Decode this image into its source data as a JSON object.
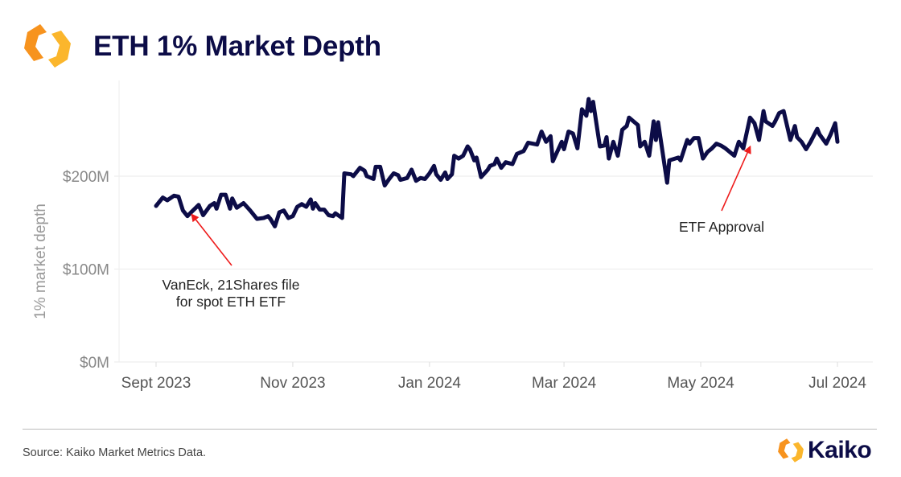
{
  "header": {
    "title": "ETH 1% Market Depth",
    "logo_icon": "kaiko-hexagon-logo"
  },
  "footer": {
    "source": "Source: Kaiko Market Metrics Data.",
    "brand": "Kaiko"
  },
  "colors": {
    "line": "#0c0c47",
    "arrow": "#ee1c1c",
    "logo_orange": "#f7931e",
    "logo_yellow": "#fbb62c"
  },
  "chart_data": {
    "type": "line",
    "title": "ETH 1% Market Depth",
    "xlabel": "",
    "ylabel": "1% market depth",
    "ylim": [
      0,
      300000000
    ],
    "yticks": [
      0,
      100000000,
      200000000
    ],
    "ytick_labels": [
      "$0M",
      "$100M",
      "$200M"
    ],
    "xticks": [
      "2023-09-01",
      "2023-11-01",
      "2024-01-01",
      "2024-03-01",
      "2024-05-01",
      "2024-07-01"
    ],
    "xtick_labels": [
      "Sept 2023",
      "Nov 2023",
      "Jan 2024",
      "Mar 2024",
      "May 2024",
      "Jul 2024"
    ],
    "grid": "horizontal",
    "unit": "USD millions",
    "series": [
      {
        "points": [
          [
            "2023-09-01",
            168
          ],
          [
            "2023-09-04",
            177
          ],
          [
            "2023-09-06",
            174
          ],
          [
            "2023-09-09",
            179
          ],
          [
            "2023-09-11",
            178
          ],
          [
            "2023-09-13",
            163
          ],
          [
            "2023-09-15",
            157
          ],
          [
            "2023-09-17",
            162
          ],
          [
            "2023-09-20",
            169
          ],
          [
            "2023-09-22",
            158
          ],
          [
            "2023-09-25",
            168
          ],
          [
            "2023-09-27",
            171
          ],
          [
            "2023-09-28",
            165
          ],
          [
            "2023-09-30",
            180
          ],
          [
            "2023-10-02",
            180
          ],
          [
            "2023-10-04",
            165
          ],
          [
            "2023-10-05",
            176
          ],
          [
            "2023-10-07",
            166
          ],
          [
            "2023-10-10",
            171
          ],
          [
            "2023-10-13",
            163
          ],
          [
            "2023-10-16",
            154
          ],
          [
            "2023-10-19",
            155
          ],
          [
            "2023-10-21",
            157
          ],
          [
            "2023-10-22",
            154
          ],
          [
            "2023-10-24",
            146
          ],
          [
            "2023-10-26",
            161
          ],
          [
            "2023-10-28",
            163
          ],
          [
            "2023-10-30",
            155
          ],
          [
            "2023-11-01",
            157
          ],
          [
            "2023-11-03",
            167
          ],
          [
            "2023-11-05",
            170
          ],
          [
            "2023-11-07",
            167
          ],
          [
            "2023-11-09",
            175
          ],
          [
            "2023-11-10",
            165
          ],
          [
            "2023-11-11",
            171
          ],
          [
            "2023-11-13",
            164
          ],
          [
            "2023-11-15",
            164
          ],
          [
            "2023-11-17",
            158
          ],
          [
            "2023-11-19",
            157
          ],
          [
            "2023-11-20",
            160
          ],
          [
            "2023-11-23",
            155
          ],
          [
            "2023-11-24",
            203
          ],
          [
            "2023-11-27",
            202
          ],
          [
            "2023-11-28",
            200
          ],
          [
            "2023-12-01",
            209
          ],
          [
            "2023-12-03",
            206
          ],
          [
            "2023-12-04",
            200
          ],
          [
            "2023-12-07",
            197
          ],
          [
            "2023-12-08",
            210
          ],
          [
            "2023-12-10",
            210
          ],
          [
            "2023-12-12",
            190
          ],
          [
            "2023-12-14",
            197
          ],
          [
            "2023-12-16",
            203
          ],
          [
            "2023-12-18",
            201
          ],
          [
            "2023-12-19",
            196
          ],
          [
            "2023-12-22",
            198
          ],
          [
            "2023-12-24",
            207
          ],
          [
            "2023-12-26",
            195
          ],
          [
            "2023-12-28",
            198
          ],
          [
            "2023-12-30",
            197
          ],
          [
            "2024-01-01",
            203
          ],
          [
            "2024-01-03",
            211
          ],
          [
            "2024-01-04",
            202
          ],
          [
            "2024-01-06",
            196
          ],
          [
            "2024-01-08",
            204
          ],
          [
            "2024-01-09",
            197
          ],
          [
            "2024-01-11",
            202
          ],
          [
            "2024-01-12",
            222
          ],
          [
            "2024-01-14",
            219
          ],
          [
            "2024-01-16",
            222
          ],
          [
            "2024-01-18",
            232
          ],
          [
            "2024-01-19",
            229
          ],
          [
            "2024-01-21",
            217
          ],
          [
            "2024-01-22",
            220
          ],
          [
            "2024-01-24",
            199
          ],
          [
            "2024-01-27",
            207
          ],
          [
            "2024-01-28",
            211
          ],
          [
            "2024-01-30",
            213
          ],
          [
            "2024-01-31",
            219
          ],
          [
            "2024-02-02",
            209
          ],
          [
            "2024-02-04",
            215
          ],
          [
            "2024-02-07",
            213
          ],
          [
            "2024-02-09",
            224
          ],
          [
            "2024-02-12",
            227
          ],
          [
            "2024-02-14",
            236
          ],
          [
            "2024-02-18",
            234
          ],
          [
            "2024-02-20",
            248
          ],
          [
            "2024-02-22",
            237
          ],
          [
            "2024-02-24",
            243
          ],
          [
            "2024-02-25",
            216
          ],
          [
            "2024-02-29",
            237
          ],
          [
            "2024-03-01",
            229
          ],
          [
            "2024-03-03",
            248
          ],
          [
            "2024-03-05",
            246
          ],
          [
            "2024-03-07",
            230
          ],
          [
            "2024-03-09",
            272
          ],
          [
            "2024-03-11",
            265
          ],
          [
            "2024-03-12",
            283
          ],
          [
            "2024-03-13",
            270
          ],
          [
            "2024-03-14",
            280
          ],
          [
            "2024-03-17",
            232
          ],
          [
            "2024-03-19",
            233
          ],
          [
            "2024-03-20",
            242
          ],
          [
            "2024-03-21",
            219
          ],
          [
            "2024-03-23",
            237
          ],
          [
            "2024-03-25",
            222
          ],
          [
            "2024-03-27",
            250
          ],
          [
            "2024-03-29",
            254
          ],
          [
            "2024-03-30",
            263
          ],
          [
            "2024-04-03",
            255
          ],
          [
            "2024-04-04",
            232
          ],
          [
            "2024-04-06",
            237
          ],
          [
            "2024-04-08",
            222
          ],
          [
            "2024-04-10",
            259
          ],
          [
            "2024-04-11",
            239
          ],
          [
            "2024-04-12",
            258
          ],
          [
            "2024-04-16",
            193
          ],
          [
            "2024-04-17",
            217
          ],
          [
            "2024-04-21",
            220
          ],
          [
            "2024-04-22",
            217
          ],
          [
            "2024-04-25",
            239
          ],
          [
            "2024-04-26",
            235
          ],
          [
            "2024-04-28",
            241
          ],
          [
            "2024-04-30",
            241
          ],
          [
            "2024-05-02",
            219
          ],
          [
            "2024-05-04",
            226
          ],
          [
            "2024-05-06",
            230
          ],
          [
            "2024-05-08",
            235
          ],
          [
            "2024-05-10",
            233
          ],
          [
            "2024-05-12",
            230
          ],
          [
            "2024-05-16",
            222
          ],
          [
            "2024-05-18",
            237
          ],
          [
            "2024-05-20",
            230
          ],
          [
            "2024-05-23",
            263
          ],
          [
            "2024-05-25",
            257
          ],
          [
            "2024-05-27",
            239
          ],
          [
            "2024-05-29",
            270
          ],
          [
            "2024-05-30",
            259
          ],
          [
            "2024-06-02",
            254
          ],
          [
            "2024-06-03",
            258
          ],
          [
            "2024-06-05",
            268
          ],
          [
            "2024-06-07",
            270
          ],
          [
            "2024-06-10",
            239
          ],
          [
            "2024-06-12",
            254
          ],
          [
            "2024-06-13",
            242
          ],
          [
            "2024-06-15",
            237
          ],
          [
            "2024-06-17",
            229
          ],
          [
            "2024-06-19",
            237
          ],
          [
            "2024-06-22",
            251
          ],
          [
            "2024-06-23",
            245
          ],
          [
            "2024-06-26",
            235
          ],
          [
            "2024-06-28",
            245
          ],
          [
            "2024-06-30",
            257
          ],
          [
            "2024-07-01",
            237
          ]
        ]
      }
    ],
    "annotations": [
      {
        "lines": [
          "VanEck, 21Shares file",
          "for spot ETH ETF"
        ],
        "date": "2023-09-17",
        "value": 162
      },
      {
        "lines": [
          "ETF Approval"
        ],
        "date": "2024-05-23",
        "value": 235
      }
    ]
  }
}
